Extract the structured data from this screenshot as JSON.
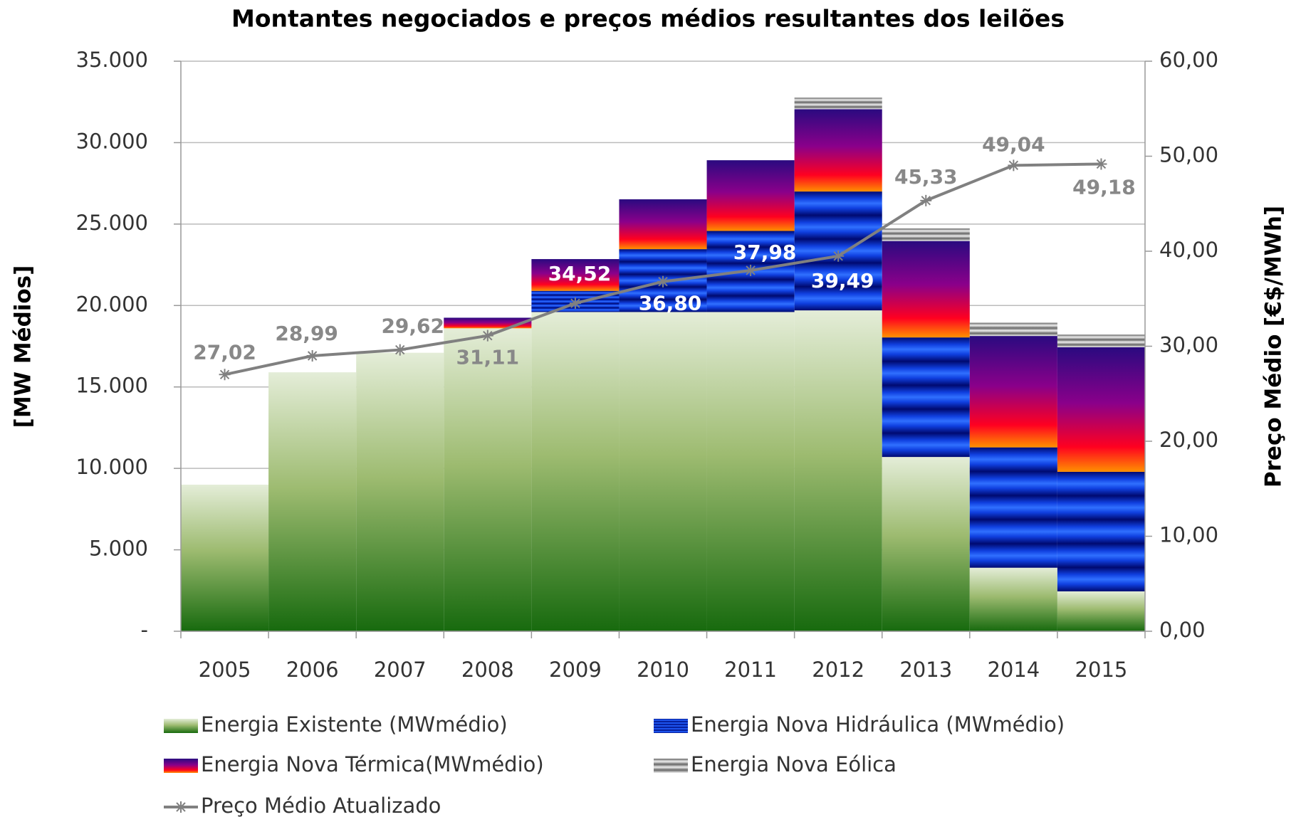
{
  "chart_data": {
    "type": "bar",
    "title": "Montantes negociados e preços médios resultantes dos leilões",
    "y_label": "[MW Médios]",
    "y2_label": "Preço Médio [€$/MWh]",
    "categories": [
      "2005",
      "2006",
      "2007",
      "2008",
      "2009",
      "2010",
      "2011",
      "2012",
      "2013",
      "2014",
      "2015"
    ],
    "stacked": true,
    "grid": true,
    "series": [
      {
        "name": "Energia Existente (MWmédio)",
        "type": "bar",
        "color": "#2a7a18",
        "values": [
          9000,
          15900,
          17100,
          18600,
          19600,
          19600,
          19600,
          19700,
          10700,
          3900,
          2450
        ]
      },
      {
        "name": "Energia Nova Hidráulica (MWmédio)",
        "type": "bar",
        "color": "#1040e0",
        "values": [
          0,
          0,
          0,
          0,
          1300,
          3860,
          4980,
          7300,
          7340,
          7390,
          7340
        ]
      },
      {
        "name": "Energia Nova Térmica(MWmédio)",
        "type": "bar",
        "color": "#6a00a0",
        "values": [
          0,
          0,
          0,
          650,
          1950,
          3060,
          4340,
          5050,
          5920,
          6840,
          7650
        ]
      },
      {
        "name": "Energia Nova Eólica",
        "type": "bar",
        "color": "#999999",
        "values": [
          0,
          0,
          0,
          0,
          0,
          0,
          0,
          710,
          770,
          810,
          770
        ]
      },
      {
        "name": "Preço Médio Atualizado",
        "type": "line",
        "axis": "y2",
        "color": "#808080",
        "values": [
          27.02,
          28.99,
          29.62,
          31.11,
          34.52,
          36.8,
          37.98,
          39.49,
          45.33,
          49.04,
          49.18
        ],
        "value_labels": [
          "27,02",
          "28,99",
          "29,62",
          "31,11",
          "34,52",
          "36,80",
          "37,98",
          "39,49",
          "45,33",
          "49,04",
          "49,18"
        ]
      }
    ],
    "ylim": [
      0,
      35000
    ],
    "yticks": [
      {
        "value": 0,
        "label": "-"
      },
      {
        "value": 5000,
        "label": "5.000"
      },
      {
        "value": 10000,
        "label": "10.000"
      },
      {
        "value": 15000,
        "label": "15.000"
      },
      {
        "value": 20000,
        "label": "20.000"
      },
      {
        "value": 25000,
        "label": "25.000"
      },
      {
        "value": 30000,
        "label": "30.000"
      },
      {
        "value": 35000,
        "label": "35.000"
      }
    ],
    "y2lim": [
      0,
      60
    ],
    "y2ticks": [
      {
        "value": 0,
        "label": "0,00"
      },
      {
        "value": 10,
        "label": "10,00"
      },
      {
        "value": 20,
        "label": "20,00"
      },
      {
        "value": 30,
        "label": "30,00"
      },
      {
        "value": 40,
        "label": "40,00"
      },
      {
        "value": 50,
        "label": "50,00"
      },
      {
        "value": 60,
        "label": "60,00"
      }
    ]
  }
}
